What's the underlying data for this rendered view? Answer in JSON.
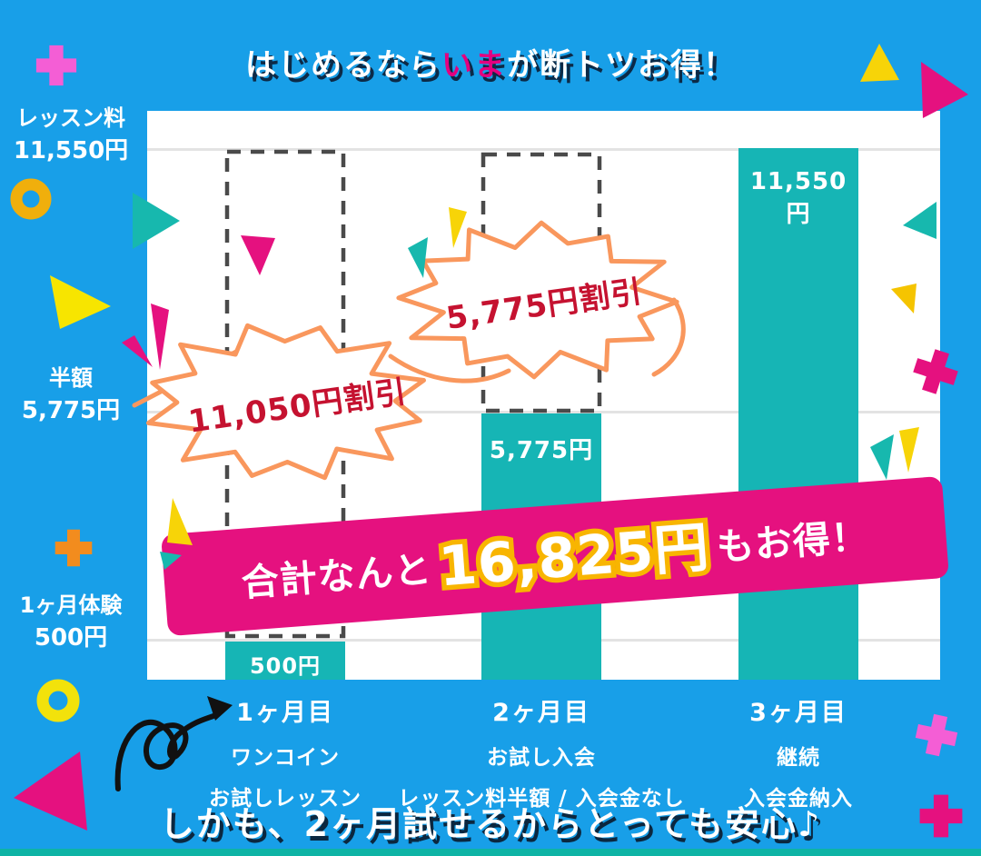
{
  "page": {
    "title": {
      "part1": "はじめるなら",
      "highlight": "いま",
      "part2": "が断トツお得！"
    },
    "footer_note": "しかも、2ヶ月試せるからとっても安心♪"
  },
  "chart_data": {
    "type": "bar",
    "title": "はじめるならいまが断トツお得！",
    "categories": [
      "1ヶ月目",
      "2ヶ月目",
      "3ヶ月目"
    ],
    "values": [
      500,
      5775,
      11550
    ],
    "bar_value_labels": [
      "500円",
      "5,775円",
      "11,550円"
    ],
    "unit": "円",
    "ylim": [
      0,
      11550
    ],
    "grid": true,
    "y_axis_labels": [
      {
        "line1": "レッスン料",
        "line2": "11,550円",
        "value": 11550
      },
      {
        "line1": "半額",
        "line2": "5,775円",
        "value": 5775
      },
      {
        "line1": "1ヶ月体験",
        "line2": "500円",
        "value": 500
      }
    ],
    "x_axis_groups": [
      {
        "month": "1ヶ月目",
        "line1": "ワンコイン",
        "line2": "お試しレッスン"
      },
      {
        "month": "2ヶ月目",
        "line1": "お試し入会",
        "line2": "レッスン料半額 / 入会金なし"
      },
      {
        "month": "3ヶ月目",
        "line1": "継続",
        "line2": "入会金納入"
      }
    ],
    "annotations": [
      {
        "text": "11,050円割引",
        "applies_to": "1ヶ月目"
      },
      {
        "text": "5,775円割引",
        "applies_to": "2ヶ月目"
      }
    ],
    "banner": {
      "prefix": "合計なんと",
      "amount": "16,825円",
      "suffix": "もお得！"
    }
  },
  "colors": {
    "background": "#189FE8",
    "bar": "#16B5B5",
    "magenta": "#E5117F",
    "title_highlight": "#E4007F",
    "bubble_outline": "#F9975D",
    "bubble_text": "#C51230",
    "amount_outline": "#F8B500",
    "yellow": "#F7D408",
    "gold_donut": "#F0AF0C",
    "bright_yellow": "#F2E20B",
    "orchid_plus": "#F45ED5",
    "orange_plus": "#F28C1E",
    "teal_decor": "#17B8AE",
    "gridline": "#E3E3E3",
    "dashed_outline": "#4A4A4A"
  }
}
